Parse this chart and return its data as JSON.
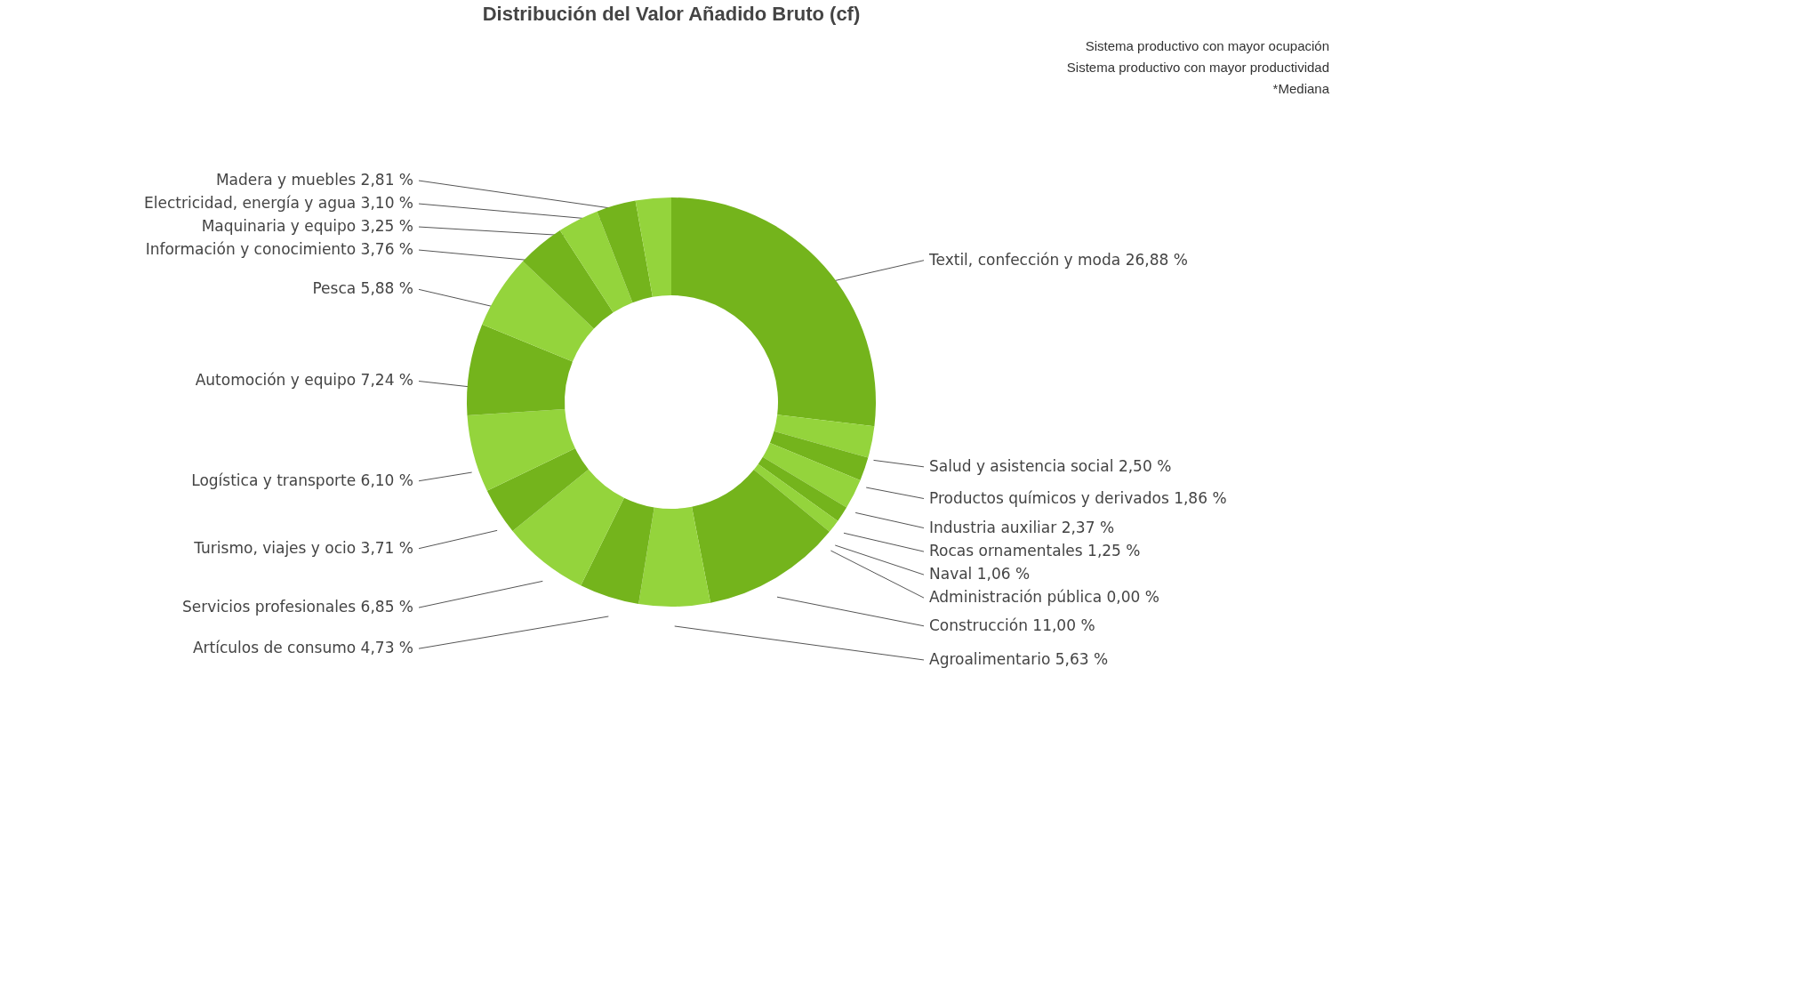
{
  "chart_data": {
    "type": "donut",
    "title": "Distribución del Valor Añadido Bruto (cf)",
    "categories": [
      "Textil, confección y moda",
      "Salud y asistencia social",
      "Productos químicos y derivados",
      "Industria auxiliar",
      "Rocas ornamentales",
      "Naval",
      "Administración pública",
      "Construcción",
      "Agroalimentario",
      "Artículos de consumo",
      "Servicios profesionales",
      "Turismo, viajes y ocio",
      "Logística y transporte",
      "Automoción y equipo",
      "Pesca",
      "Información y conocimiento",
      "Maquinaria y equipo",
      "Electricidad, energía y agua",
      "Madera y muebles"
    ],
    "values": [
      26.88,
      2.5,
      1.86,
      2.37,
      1.25,
      1.06,
      0.0,
      11.0,
      5.63,
      4.73,
      6.85,
      3.71,
      6.1,
      7.24,
      5.88,
      3.76,
      3.25,
      3.1,
      2.81
    ],
    "value_labels": [
      "26,88 %",
      "2,50 %",
      "1,86 %",
      "2,37 %",
      "1,25 %",
      "1,06 %",
      "0,00 %",
      "11,00 %",
      "5,63 %",
      "4,73 %",
      "6,85 %",
      "3,71 %",
      "6,10 %",
      "7,24 %",
      "5,88 %",
      "3,76 %",
      "3,25 %",
      "3,10 %",
      "2,81 %"
    ],
    "colors": [
      "#74b41c",
      "#94d43c",
      "#74b41c",
      "#94d43c",
      "#74b41c",
      "#94d43c",
      "#74b41c",
      "#74b41c",
      "#94d43c",
      "#74b41c",
      "#94d43c",
      "#74b41c",
      "#94d43c",
      "#74b41c",
      "#94d43c",
      "#74b41c",
      "#94d43c",
      "#74b41c",
      "#94d43c"
    ],
    "annotations": [
      "Sistema productivo con mayor ocupación",
      "Sistema productivo con mayor productividad",
      "*Mediana"
    ],
    "legend": false
  }
}
